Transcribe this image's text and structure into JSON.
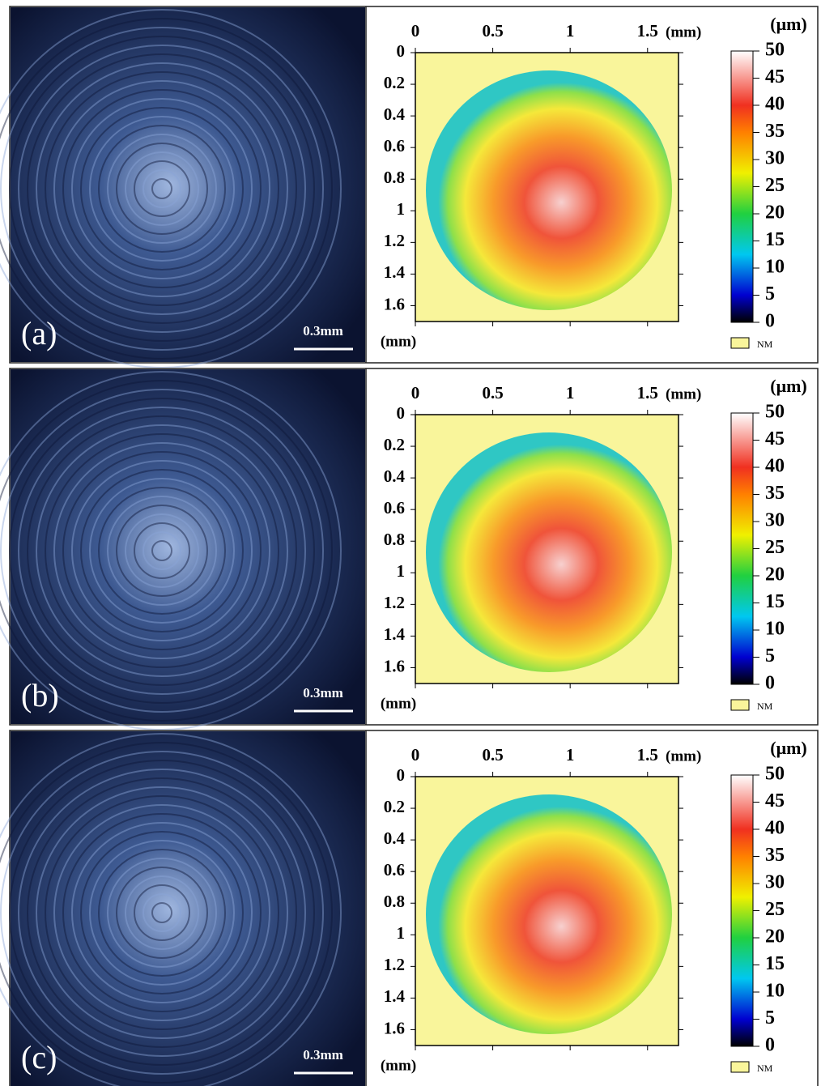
{
  "panels": [
    {
      "label": "(a)",
      "scale_bar": "0.3mm",
      "x_unit": "(mm)",
      "y_unit": "(mm)",
      "colorbar_unit": "(μm)",
      "legend": "NM",
      "xlim": [
        0,
        1.7
      ],
      "ylim": [
        0,
        1.7
      ],
      "xticks": [
        0,
        0.5,
        1,
        1.5
      ],
      "yticks": [
        0,
        0.2,
        0.4,
        0.6,
        0.8,
        1,
        1.2,
        1.4,
        1.6
      ],
      "clim": [
        0,
        50
      ],
      "colorbar_ticks": [
        0,
        5,
        10,
        15,
        20,
        25,
        30,
        35,
        40,
        45,
        50
      ]
    },
    {
      "label": "(b)",
      "scale_bar": "0.3mm",
      "x_unit": "(mm)",
      "y_unit": "(mm)",
      "colorbar_unit": "(μm)",
      "legend": "NM",
      "xlim": [
        0,
        1.7
      ],
      "ylim": [
        0,
        1.7
      ],
      "xticks": [
        0,
        0.5,
        1,
        1.5
      ],
      "yticks": [
        0,
        0.2,
        0.4,
        0.6,
        0.8,
        1,
        1.2,
        1.4,
        1.6
      ],
      "clim": [
        0,
        50
      ],
      "colorbar_ticks": [
        0,
        5,
        10,
        15,
        20,
        25,
        30,
        35,
        40,
        45,
        50
      ]
    },
    {
      "label": "(c)",
      "scale_bar": "0.3mm",
      "x_unit": "(mm)",
      "y_unit": "(mm)",
      "colorbar_unit": "(μm)",
      "legend": "NM",
      "xlim": [
        0,
        1.7
      ],
      "ylim": [
        0,
        1.7
      ],
      "xticks": [
        0,
        0.5,
        1,
        1.5
      ],
      "yticks": [
        0,
        0.2,
        0.4,
        0.6,
        0.8,
        1,
        1.2,
        1.4,
        1.6
      ],
      "clim": [
        0,
        50
      ],
      "colorbar_ticks": [
        0,
        5,
        10,
        15,
        20,
        25,
        30,
        35,
        40,
        45,
        50
      ]
    }
  ]
}
